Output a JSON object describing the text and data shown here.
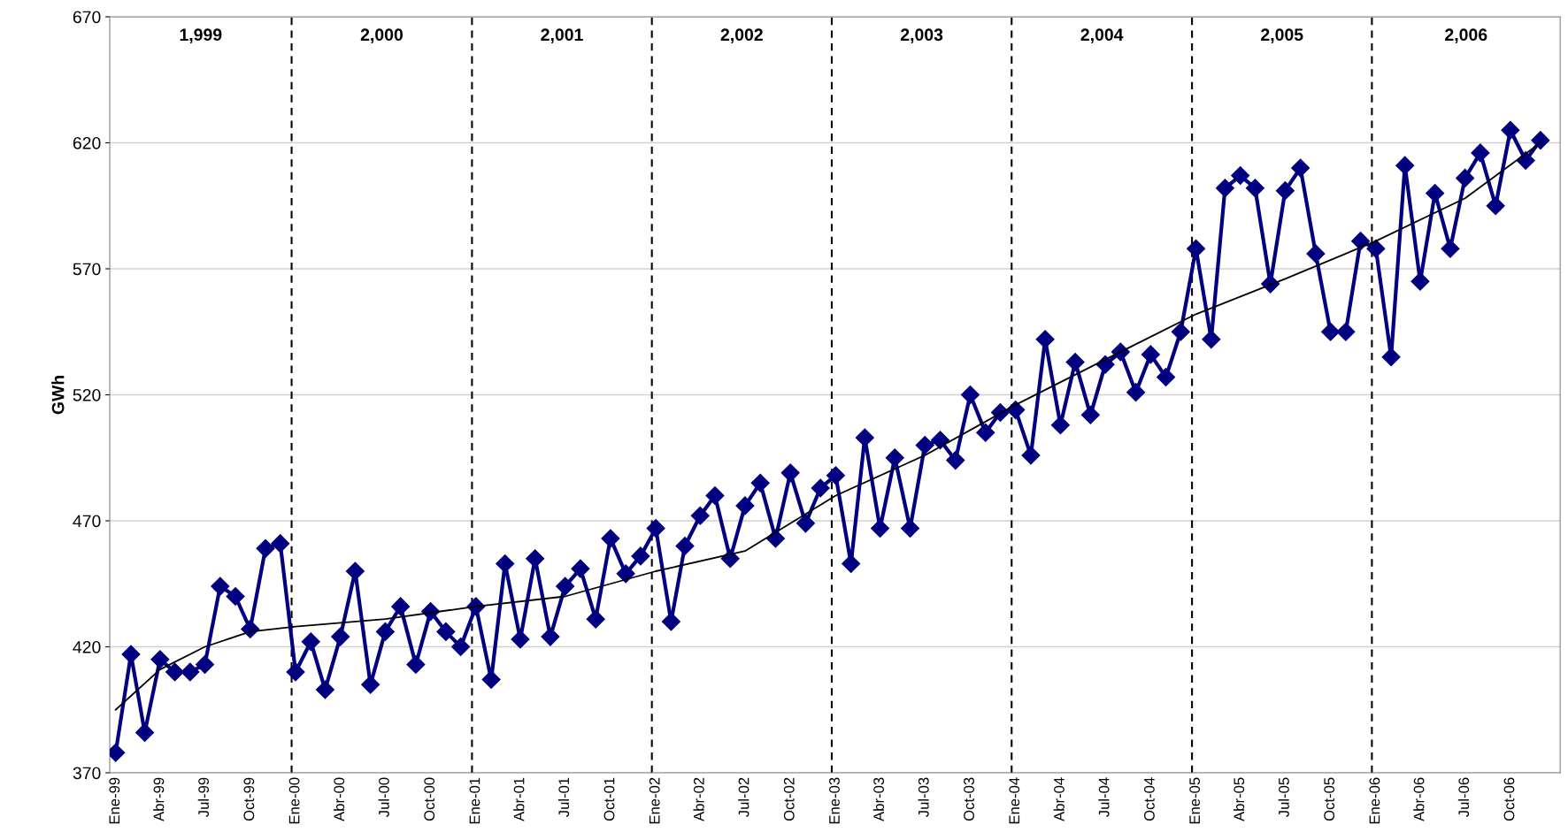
{
  "chart_data": {
    "type": "line",
    "ylabel": "GWh",
    "x": [
      "1999-01",
      "1999-02",
      "1999-03",
      "1999-04",
      "1999-05",
      "1999-06",
      "1999-07",
      "1999-08",
      "1999-09",
      "1999-10",
      "1999-11",
      "1999-12",
      "2000-01",
      "2000-02",
      "2000-03",
      "2000-04",
      "2000-05",
      "2000-06",
      "2000-07",
      "2000-08",
      "2000-09",
      "2000-10",
      "2000-11",
      "2000-12",
      "2001-01",
      "2001-02",
      "2001-03",
      "2001-04",
      "2001-05",
      "2001-06",
      "2001-07",
      "2001-08",
      "2001-09",
      "2001-10",
      "2001-11",
      "2001-12",
      "2002-01",
      "2002-02",
      "2002-03",
      "2002-04",
      "2002-05",
      "2002-06",
      "2002-07",
      "2002-08",
      "2002-09",
      "2002-10",
      "2002-11",
      "2002-12",
      "2003-01",
      "2003-02",
      "2003-03",
      "2003-04",
      "2003-05",
      "2003-06",
      "2003-07",
      "2003-08",
      "2003-09",
      "2003-10",
      "2003-11",
      "2003-12",
      "2004-01",
      "2004-02",
      "2004-03",
      "2004-04",
      "2004-05",
      "2004-06",
      "2004-07",
      "2004-08",
      "2004-09",
      "2004-10",
      "2004-11",
      "2004-12",
      "2005-01",
      "2005-02",
      "2005-03",
      "2005-04",
      "2005-05",
      "2005-06",
      "2005-07",
      "2005-08",
      "2005-09",
      "2005-10",
      "2005-11",
      "2005-12",
      "2006-01",
      "2006-02",
      "2006-03",
      "2006-04",
      "2006-05",
      "2006-06",
      "2006-07",
      "2006-08",
      "2006-09",
      "2006-10",
      "2006-11",
      "2006-12"
    ],
    "series": [
      {
        "color": "#000080",
        "marker": "diamond",
        "values": [
          378,
          417,
          386,
          415,
          410,
          410,
          413,
          444,
          440,
          427,
          459,
          461,
          410,
          422,
          403,
          424,
          450,
          405,
          426,
          436,
          413,
          434,
          426,
          420,
          436,
          407,
          453,
          423,
          455,
          424,
          444,
          451,
          431,
          463,
          449,
          456,
          467,
          430,
          460,
          472,
          480,
          455,
          476,
          485,
          463,
          489,
          469,
          483,
          488,
          453,
          503,
          467,
          495,
          467,
          500,
          502,
          494,
          520,
          505,
          513,
          514,
          496,
          542,
          508,
          533,
          512,
          532,
          537,
          521,
          536,
          527,
          545,
          578,
          542,
          602,
          607,
          602,
          564,
          601,
          610,
          576,
          545,
          545,
          581,
          578,
          535,
          611,
          565,
          600,
          578,
          606,
          616,
          595,
          625,
          613,
          621
        ]
      },
      {
        "color": "#000000",
        "marker": "none",
        "x": [
          "1999-01",
          "1999-04",
          "1999-07",
          "1999-10",
          "2000-01",
          "2000-07",
          "2001-01",
          "2001-07",
          "2002-01",
          "2002-07",
          "2003-01",
          "2003-07",
          "2004-01",
          "2004-07",
          "2005-01",
          "2005-07",
          "2006-01",
          "2006-07",
          "2006-12"
        ],
        "values": [
          395,
          411,
          420,
          426,
          428,
          431,
          436,
          440,
          450,
          458,
          480,
          496,
          516,
          534,
          552,
          566,
          581,
          598,
          620
        ]
      }
    ],
    "xlim": [
      "1998-12-20",
      "2007-01-10"
    ],
    "xticks": [
      {
        "value": "1999-01",
        "label": "Ene-99"
      },
      {
        "value": "1999-04",
        "label": "Abr-99"
      },
      {
        "value": "1999-07",
        "label": "Jul-99"
      },
      {
        "value": "1999-10",
        "label": "Oct-99"
      },
      {
        "value": "2000-01",
        "label": "Ene-00"
      },
      {
        "value": "2000-04",
        "label": "Abr-00"
      },
      {
        "value": "2000-07",
        "label": "Jul-00"
      },
      {
        "value": "2000-10",
        "label": "Oct-00"
      },
      {
        "value": "2001-01",
        "label": "Ene-01"
      },
      {
        "value": "2001-04",
        "label": "Abr-01"
      },
      {
        "value": "2001-07",
        "label": "Jul-01"
      },
      {
        "value": "2001-10",
        "label": "Oct-01"
      },
      {
        "value": "2002-01",
        "label": "Ene-02"
      },
      {
        "value": "2002-04",
        "label": "Abr-02"
      },
      {
        "value": "2002-07",
        "label": "Jul-02"
      },
      {
        "value": "2002-10",
        "label": "Oct-02"
      },
      {
        "value": "2003-01",
        "label": "Ene-03"
      },
      {
        "value": "2003-04",
        "label": "Abr-03"
      },
      {
        "value": "2003-07",
        "label": "Jul-03"
      },
      {
        "value": "2003-10",
        "label": "Oct-03"
      },
      {
        "value": "2004-01",
        "label": "Ene-04"
      },
      {
        "value": "2004-04",
        "label": "Abr-04"
      },
      {
        "value": "2004-07",
        "label": "Jul-04"
      },
      {
        "value": "2004-10",
        "label": "Oct-04"
      },
      {
        "value": "2005-01",
        "label": "Ene-05"
      },
      {
        "value": "2005-04",
        "label": "Abr-05"
      },
      {
        "value": "2005-07",
        "label": "Jul-05"
      },
      {
        "value": "2005-10",
        "label": "Oct-05"
      },
      {
        "value": "2006-01",
        "label": "Ene-06"
      },
      {
        "value": "2006-04",
        "label": "Abr-06"
      },
      {
        "value": "2006-07",
        "label": "Jul-06"
      },
      {
        "value": "2006-10",
        "label": "Oct-06"
      }
    ],
    "ylim": [
      370,
      670
    ],
    "yticks": [
      370,
      420,
      470,
      520,
      570,
      620,
      670
    ],
    "grid": "y",
    "ref_lines": [
      {
        "axis": "x",
        "value": "1999-12-24",
        "label": null,
        "color": "#000000",
        "line_style": "dashed"
      },
      {
        "axis": "x",
        "value": "2000-12-24",
        "label": null,
        "color": "#000000",
        "line_style": "dashed"
      },
      {
        "axis": "x",
        "value": "2001-12-24",
        "label": null,
        "color": "#000000",
        "line_style": "dashed"
      },
      {
        "axis": "x",
        "value": "2002-12-24",
        "label": null,
        "color": "#000000",
        "line_style": "dashed"
      },
      {
        "axis": "x",
        "value": "2003-12-24",
        "label": null,
        "color": "#000000",
        "line_style": "dashed"
      },
      {
        "axis": "x",
        "value": "2004-12-24",
        "label": null,
        "color": "#000000",
        "line_style": "dashed"
      },
      {
        "axis": "x",
        "value": "2005-12-24",
        "label": null,
        "color": "#000000",
        "line_style": "dashed"
      }
    ],
    "annotations": [
      "1,999",
      "2,000",
      "2,001",
      "2,002",
      "2,003",
      "2,004",
      "2,005",
      "2,006"
    ]
  }
}
